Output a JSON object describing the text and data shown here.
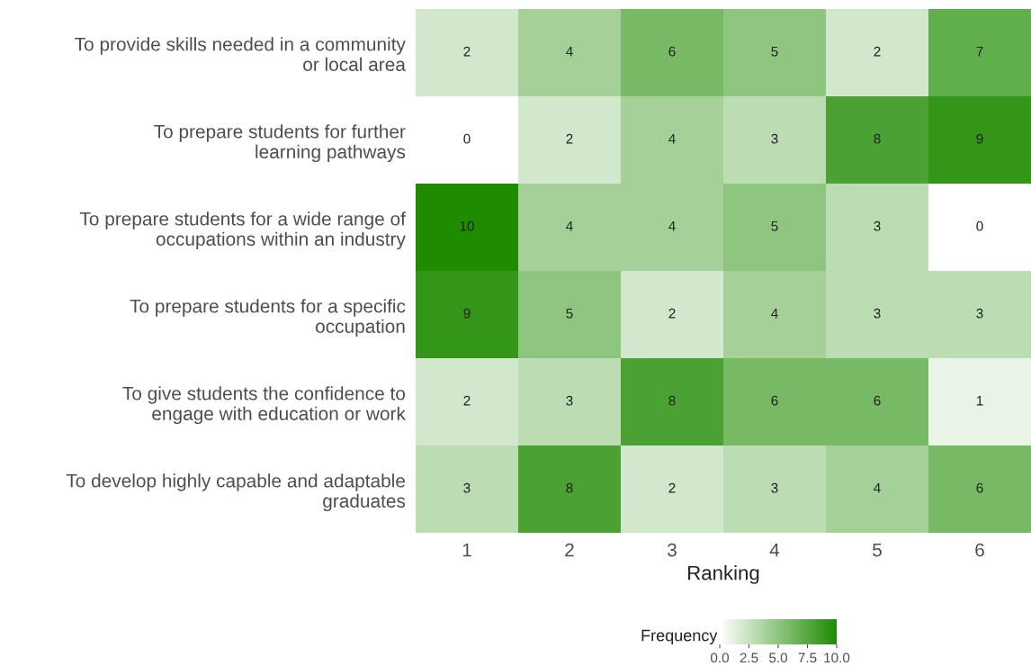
{
  "chart_data": {
    "type": "heatmap",
    "xlabel": "Ranking",
    "clabel": "Frequency",
    "categories": [
      "1",
      "2",
      "3",
      "4",
      "5",
      "6"
    ],
    "y_categories": [
      "To provide skills needed in a community\nor local area",
      "To prepare students for further\nlearning pathways",
      "To prepare students for a wide range of\noccupations within an industry",
      "To prepare students for a specific\noccupation",
      "To give students the confidence to\nengage with education or work",
      "To develop highly capable and adaptable\ngraduates"
    ],
    "cells": [
      [
        2,
        4,
        6,
        5,
        2,
        7
      ],
      [
        0,
        2,
        4,
        3,
        8,
        9
      ],
      [
        10,
        4,
        4,
        5,
        3,
        0
      ],
      [
        9,
        5,
        2,
        4,
        3,
        3
      ],
      [
        2,
        3,
        8,
        6,
        6,
        1
      ],
      [
        3,
        8,
        2,
        3,
        4,
        6
      ]
    ],
    "color": "#1e8b00",
    "clim": [
      0,
      10
    ],
    "cticks": [
      {
        "value": 0,
        "label": "0.0"
      },
      {
        "value": 2.5,
        "label": "2.5"
      },
      {
        "value": 5,
        "label": "5.0"
      },
      {
        "value": 7.5,
        "label": "7.5"
      },
      {
        "value": 10,
        "label": "10.0"
      }
    ],
    "data_labels": true
  }
}
